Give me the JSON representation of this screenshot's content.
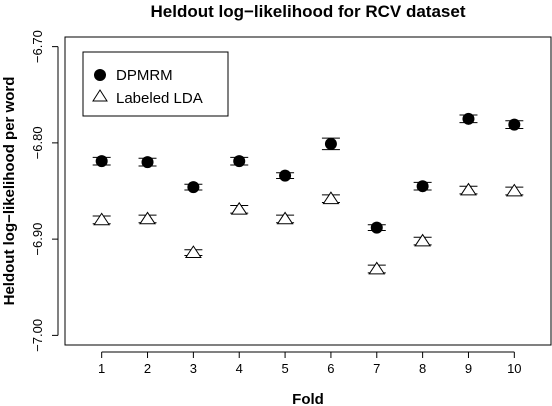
{
  "chart_data": {
    "type": "scatter",
    "title": "Heldout log−likelihood for RCV dataset",
    "xlabel": "Fold",
    "ylabel": "Heldout log−likelihood per word",
    "categories": [
      "1",
      "2",
      "3",
      "4",
      "5",
      "6",
      "7",
      "8",
      "9",
      "10"
    ],
    "x": [
      1,
      2,
      3,
      4,
      5,
      6,
      7,
      8,
      9,
      10
    ],
    "xlim": [
      0.2,
      10.8
    ],
    "ylim": [
      -7.01,
      -6.69
    ],
    "yticks": [
      -7.0,
      -6.9,
      -6.8,
      -6.7
    ],
    "ytick_labels": [
      "−7.00",
      "−6.90",
      "−6.80",
      "−6.70"
    ],
    "grid": false,
    "legend_position": "top-left",
    "series": [
      {
        "name": "DPMRM",
        "marker": "filled-circle",
        "color": "#000000",
        "values": [
          -6.819,
          -6.82,
          -6.846,
          -6.819,
          -6.834,
          -6.801,
          -6.888,
          -6.845,
          -6.775,
          -6.781
        ],
        "error": [
          0.004,
          0.004,
          0.003,
          0.004,
          0.003,
          0.006,
          0.003,
          0.004,
          0.004,
          0.004
        ]
      },
      {
        "name": "Labeled LDA",
        "marker": "open-triangle",
        "color": "#000000",
        "values": [
          -6.88,
          -6.879,
          -6.914,
          -6.869,
          -6.879,
          -6.858,
          -6.931,
          -6.902,
          -6.849,
          -6.85
        ],
        "error": [
          0.004,
          0.004,
          0.003,
          0.004,
          0.004,
          0.004,
          0.004,
          0.004,
          0.004,
          0.004
        ]
      }
    ]
  }
}
